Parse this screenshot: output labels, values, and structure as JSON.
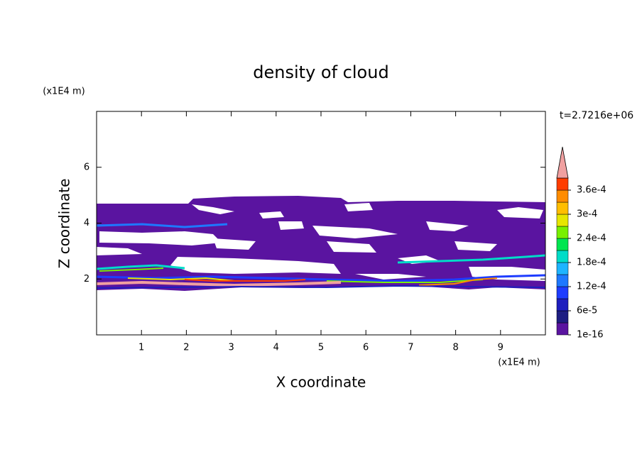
{
  "chart_data": {
    "type": "contour",
    "title": "density of cloud",
    "x_label": "X coordinate",
    "y_label": "Z coordinate",
    "x_unit": "(x1E4 m)",
    "y_unit": "(x1E4 m)",
    "time_label": "t=2.7216e+06",
    "xlim": [
      0,
      10
    ],
    "ylim": [
      0,
      8
    ],
    "xticks": [
      1,
      2,
      3,
      4,
      5,
      6,
      7,
      8,
      9
    ],
    "yticks": [
      2,
      4,
      6
    ],
    "levels": [
      1e-16,
      3e-05,
      6e-05,
      9e-05,
      0.00012,
      0.00015,
      0.00018,
      0.00021,
      0.00024,
      0.00027,
      0.0003,
      0.00033,
      0.00036,
      0.00039
    ],
    "colors": [
      "#5a14a0",
      "#1e1e82",
      "#1e1ebe",
      "#1e3cff",
      "#1e78ff",
      "#1eb4ff",
      "#00dcc8",
      "#00e650",
      "#78f000",
      "#e6e600",
      "#ffbe00",
      "#ff8c00",
      "#ff3c00",
      "#f0a0a0"
    ],
    "colorbar_ticks": [
      {
        "value": 1e-16,
        "label": "1e-16"
      },
      {
        "value": 6e-05,
        "label": "6e-5"
      },
      {
        "value": 0.00012,
        "label": "1.2e-4"
      },
      {
        "value": 0.00018,
        "label": "1.8e-4"
      },
      {
        "value": 0.00024,
        "label": "2.4e-4"
      },
      {
        "value": 0.0003,
        "label": "3e-4"
      },
      {
        "value": 0.00036,
        "label": "3.6e-4"
      }
    ]
  }
}
